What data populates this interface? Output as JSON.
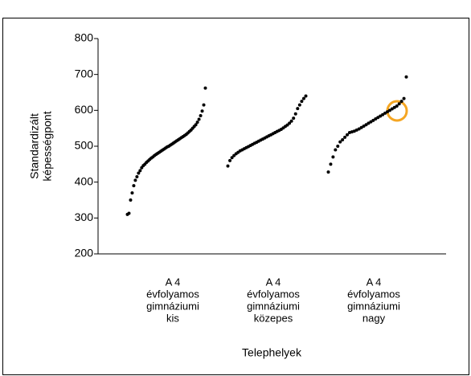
{
  "chart_data": {
    "type": "strip",
    "y_label": [
      "Standardizált",
      "képességpont"
    ],
    "x_label": "Telephelyek",
    "categories": [
      [
        "A 4",
        "évfolyamos",
        "gimnáziumi",
        "kis"
      ],
      [
        "A 4",
        "évfolyamos",
        "gimnáziumi",
        "közepes"
      ],
      [
        "A 4",
        "évfolyamos",
        "gimnáziumi",
        "nagy"
      ]
    ],
    "color": "#000000",
    "series": [
      {
        "values": [
          310,
          313,
          350,
          370,
          390,
          405,
          415,
          425,
          432,
          440,
          446,
          450,
          455,
          459,
          463,
          467,
          470,
          474,
          477,
          480,
          483,
          486,
          489,
          492,
          495,
          498,
          500,
          503,
          506,
          509,
          512,
          515,
          518,
          521,
          524,
          527,
          530,
          533,
          537,
          541,
          545,
          550,
          555,
          560,
          567,
          575,
          585,
          598,
          615,
          662
        ]
      },
      {
        "values": [
          445,
          460,
          468,
          474,
          479,
          483,
          487,
          490,
          493,
          496,
          499,
          502,
          505,
          508,
          511,
          514,
          517,
          520,
          523,
          526,
          529,
          532,
          535,
          538,
          541,
          544,
          547,
          551,
          555,
          559,
          564,
          570,
          578,
          590,
          605,
          615,
          625,
          633,
          640
        ]
      },
      {
        "values": [
          428,
          450,
          470,
          490,
          500,
          512,
          518,
          525,
          532,
          538,
          540,
          542,
          545,
          548,
          552,
          556,
          560,
          564,
          568,
          572,
          576,
          580,
          584,
          588,
          592,
          596,
          600,
          604,
          608,
          612,
          618,
          625,
          633,
          693
        ]
      }
    ],
    "ylim": [
      200,
      800
    ],
    "yticks": [
      200,
      300,
      400,
      500,
      600,
      700,
      800
    ],
    "grid": false
  }
}
